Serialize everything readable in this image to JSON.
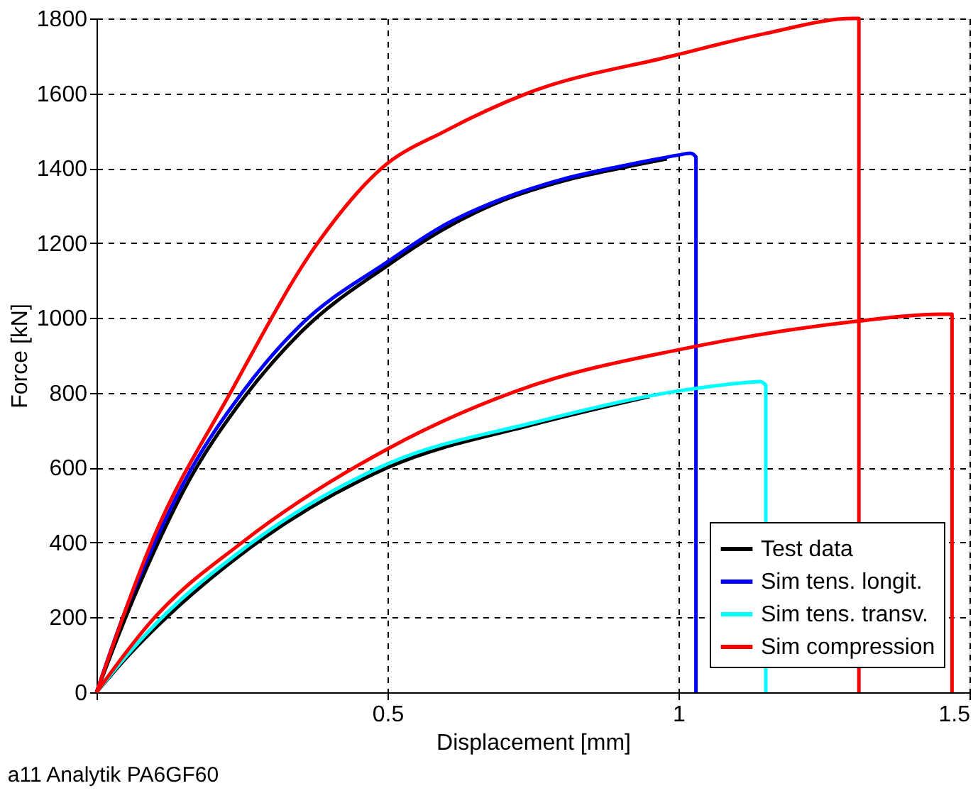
{
  "chart_data": {
    "type": "line",
    "xlabel": "Displacement [mm]",
    "ylabel": "Force [kN]",
    "xlim": [
      0,
      1.5
    ],
    "ylim": [
      0,
      1800
    ],
    "xticks": [
      {
        "value": 0,
        "label": null
      },
      0.5,
      1,
      1.5
    ],
    "yticks": [
      0,
      200,
      400,
      600,
      800,
      1000,
      1200,
      1400,
      1600,
      1800
    ],
    "grid": true,
    "legend": "bottom right",
    "marker": "none",
    "line_style": "solid",
    "annotations": [
      "a11 Analytik PA6GF60"
    ],
    "series": [
      {
        "name": "Test data",
        "color": "#000000",
        "x": [
          0,
          0.05,
          0.1,
          0.15,
          0.25,
          0.35,
          0.5,
          0.6,
          0.7,
          0.8,
          0.9,
          0.98
        ],
        "values": [
          0,
          200,
          380,
          540,
          780,
          960,
          1140,
          1240,
          1315,
          1365,
          1400,
          1425
        ]
      },
      {
        "color": "#000000",
        "x": [
          0,
          0.05,
          0.1,
          0.25,
          0.5,
          0.75,
          0.95
        ],
        "values": [
          0,
          90,
          170,
          370,
          600,
          715,
          790
        ]
      },
      {
        "name": "Sim tens. longit.",
        "color": "#0000ff",
        "x": [
          0,
          0.05,
          0.1,
          0.15,
          0.25,
          0.35,
          0.5,
          0.6,
          0.7,
          0.8,
          0.9,
          1.0,
          1.02,
          1.03,
          1.03
        ],
        "values": [
          0,
          220,
          400,
          560,
          800,
          980,
          1150,
          1250,
          1320,
          1370,
          1405,
          1435,
          1440,
          1430,
          0
        ]
      },
      {
        "name": "Sim tens. transv.",
        "color": "#00ffff",
        "x": [
          0,
          0.05,
          0.1,
          0.25,
          0.5,
          0.75,
          1.0,
          1.1,
          1.14,
          1.15,
          1.15
        ],
        "values": [
          0,
          95,
          180,
          380,
          610,
          720,
          805,
          825,
          830,
          820,
          0
        ]
      },
      {
        "name": "Sim compression",
        "color": "#ff0000",
        "x": [
          0,
          0.1,
          0.23,
          0.38,
          0.49,
          0.6,
          0.74,
          0.99,
          1.15,
          1.3,
          1.31,
          1.31
        ],
        "values": [
          0,
          420,
          800,
          1200,
          1400,
          1500,
          1600,
          1700,
          1760,
          1800,
          1800,
          0
        ]
      },
      {
        "color": "#ff0000",
        "x": [
          0,
          0.1,
          0.25,
          0.5,
          0.75,
          1.0,
          1.3,
          1.45,
          1.47,
          1.47
        ],
        "values": [
          0,
          200,
          400,
          650,
          820,
          915,
          990,
          1010,
          1010,
          0
        ]
      }
    ]
  }
}
